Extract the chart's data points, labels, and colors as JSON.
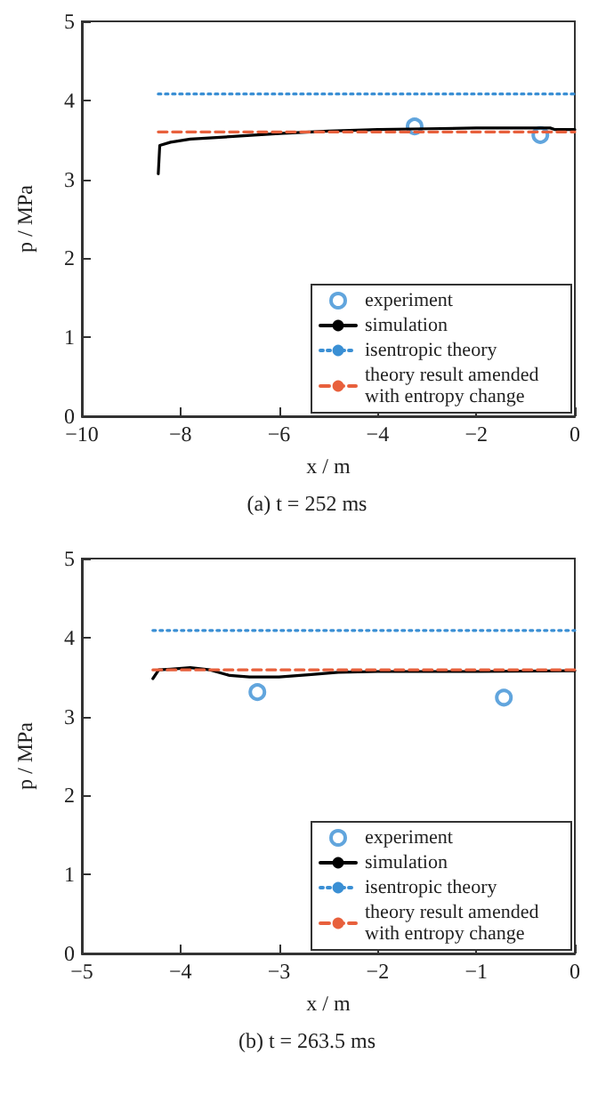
{
  "chart_data": [
    {
      "type": "line",
      "title": "(a) t = 252 ms",
      "xlabel": "x / m",
      "ylabel": "p / MPa",
      "xlim": [
        -10,
        0
      ],
      "xticks": [
        -10,
        -8,
        -6,
        -4,
        -2,
        0
      ],
      "ylim": [
        0,
        5
      ],
      "yticks": [
        0,
        1,
        2,
        3,
        4,
        5
      ],
      "grid": false,
      "legend": "bottom right",
      "series": [
        {
          "name": "experiment",
          "type": "scatter",
          "marker": "circle",
          "color": "#3a8fd4",
          "x": [
            -3.25,
            -0.7
          ],
          "values": [
            3.67,
            3.56
          ]
        },
        {
          "name": "simulation",
          "line_style": "solid",
          "color": "#000000",
          "x": [
            -8.45,
            -8.42,
            -8.2,
            -7.8,
            -7,
            -6,
            -5,
            -4,
            -3,
            -2,
            -1,
            -0.5,
            -0.4,
            0
          ],
          "values": [
            3.07,
            3.43,
            3.47,
            3.51,
            3.54,
            3.58,
            3.61,
            3.63,
            3.64,
            3.65,
            3.65,
            3.65,
            3.63,
            3.63
          ]
        },
        {
          "name": "isentropic theory",
          "type": "line",
          "line_style": "dotted",
          "color": "#3a8fd4",
          "x": [
            -8.45,
            0
          ],
          "values": [
            4.08,
            4.08
          ]
        },
        {
          "name": "theory result amended with entropy change",
          "type": "line",
          "line_style": "dashed",
          "color": "#e8603c",
          "x": [
            -8.45,
            0
          ],
          "values": [
            3.6,
            3.6
          ]
        }
      ]
    },
    {
      "type": "line",
      "title": "(b) t = 263.5 ms",
      "xlabel": "x / m",
      "ylabel": "p / MPa",
      "xlim": [
        -5,
        0
      ],
      "xticks": [
        -5,
        -4,
        -3,
        -2,
        -1,
        0
      ],
      "ylim": [
        0,
        5
      ],
      "yticks": [
        0,
        1,
        2,
        3,
        4,
        5
      ],
      "grid": false,
      "legend": "bottom right",
      "series": [
        {
          "name": "experiment",
          "type": "scatter",
          "marker": "circle",
          "color": "#3a8fd4",
          "x": [
            -3.22,
            -0.72
          ],
          "values": [
            3.31,
            3.24
          ]
        },
        {
          "name": "simulation",
          "line_style": "solid",
          "color": "#000000",
          "x": [
            -4.28,
            -4.22,
            -4.1,
            -3.9,
            -3.7,
            -3.5,
            -3.3,
            -3.0,
            -2.7,
            -2.4,
            -2,
            -1,
            0
          ],
          "values": [
            3.48,
            3.59,
            3.6,
            3.62,
            3.59,
            3.52,
            3.5,
            3.5,
            3.53,
            3.56,
            3.57,
            3.57,
            3.58
          ]
        },
        {
          "name": "isentropic theory",
          "type": "line",
          "line_style": "dotted",
          "color": "#3a8fd4",
          "x": [
            -4.28,
            0
          ],
          "values": [
            4.09,
            4.09
          ]
        },
        {
          "name": "theory result amended with entropy change",
          "type": "line",
          "line_style": "dashed",
          "color": "#e8603c",
          "x": [
            -4.28,
            0
          ],
          "values": [
            3.59,
            3.59
          ]
        }
      ]
    }
  ]
}
